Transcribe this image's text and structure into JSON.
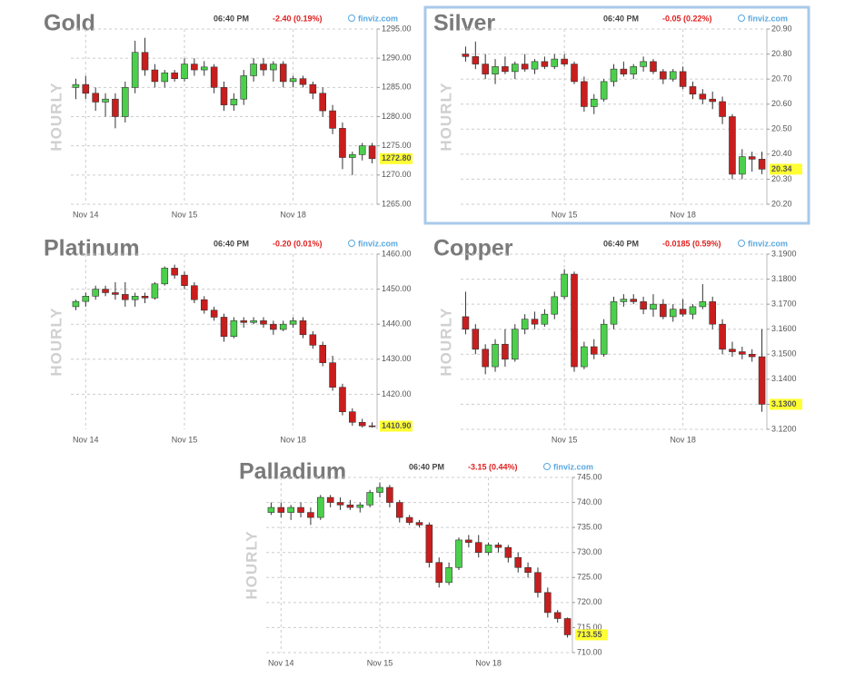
{
  "chart_data": [
    {
      "type": "candlestick",
      "title": "Gold",
      "time": "06:40 PM",
      "change": "-2.40 (0.19%)",
      "change_color": "#e02020",
      "source": "finviz.com",
      "y_label": "HOURLY",
      "categories": [
        null,
        "Nov 14",
        null,
        null,
        null,
        null,
        null,
        null,
        null,
        null,
        null,
        "Nov 15",
        null,
        null,
        null,
        null,
        null,
        null,
        null,
        null,
        null,
        null,
        "Nov 18",
        null,
        null,
        null,
        null,
        null,
        null,
        null,
        null
      ],
      "open": [
        1285,
        1285.5,
        1284,
        1282.5,
        1283,
        1280,
        1285,
        1291,
        1288,
        1286,
        1287.5,
        1286.5,
        1289,
        1288,
        1288.5,
        1285,
        1282,
        1283,
        1287,
        1289,
        1288,
        1289,
        1286,
        1286.5,
        1285.5,
        1284,
        1281,
        1278,
        1273,
        1273.5,
        1275
      ],
      "high": [
        1286.5,
        1287,
        1285,
        1284,
        1284,
        1286,
        1293,
        1293.5,
        1289,
        1288,
        1288,
        1290,
        1290,
        1289.5,
        1289,
        1286,
        1284,
        1288,
        1290,
        1290,
        1289.5,
        1289.5,
        1287,
        1287,
        1286,
        1285,
        1282,
        1279,
        1274,
        1275.5,
        1275.5
      ],
      "low": [
        1283,
        1283,
        1281,
        1280,
        1278,
        1279,
        1284,
        1287,
        1285,
        1285,
        1286,
        1286,
        1287,
        1287,
        1284,
        1281,
        1281,
        1282,
        1286,
        1287,
        1286,
        1285,
        1285,
        1285,
        1283,
        1280,
        1277,
        1271,
        1270,
        1272.5,
        1272
      ],
      "close": [
        1285.5,
        1284,
        1282.5,
        1283,
        1280,
        1285,
        1291,
        1288,
        1286,
        1287.5,
        1286.5,
        1289,
        1288,
        1288.5,
        1285,
        1282,
        1283,
        1287,
        1289,
        1288,
        1289,
        1286,
        1286.5,
        1285.5,
        1284,
        1281,
        1278,
        1273,
        1273.5,
        1275,
        1272.8
      ],
      "up_color": "#4cd04c",
      "down_color": "#c81e1e",
      "last_price": {
        "value": 1272.8,
        "label": "1272.80"
      },
      "ylim": [
        1265,
        1295
      ],
      "yticks": [
        {
          "value": 1265,
          "label": "1265.00"
        },
        {
          "value": 1270,
          "label": "1270.00"
        },
        {
          "value": 1275,
          "label": "1275.00"
        },
        {
          "value": 1280,
          "label": "1280.00"
        },
        {
          "value": 1285,
          "label": "1285.00"
        },
        {
          "value": 1290,
          "label": "1290.00"
        },
        {
          "value": 1295,
          "label": "1295.00"
        }
      ],
      "grid": true,
      "selected": false
    },
    {
      "type": "candlestick",
      "title": "Silver",
      "time": "06:40 PM",
      "change": "-0.05 (0.22%)",
      "change_color": "#e02020",
      "source": "finviz.com",
      "y_label": "HOURLY",
      "categories": [
        null,
        null,
        null,
        null,
        null,
        null,
        null,
        null,
        null,
        null,
        "Nov 15",
        null,
        null,
        null,
        null,
        null,
        null,
        null,
        null,
        null,
        null,
        null,
        "Nov 18",
        null,
        null,
        null,
        null,
        null,
        null,
        null,
        null
      ],
      "open": [
        20.8,
        20.79,
        20.76,
        20.72,
        20.75,
        20.73,
        20.76,
        20.74,
        20.77,
        20.75,
        20.78,
        20.76,
        20.69,
        20.59,
        20.62,
        20.69,
        20.74,
        20.72,
        20.75,
        20.77,
        20.73,
        20.7,
        20.73,
        20.67,
        20.64,
        20.62,
        20.61,
        20.55,
        20.32,
        20.39,
        20.38
      ],
      "high": [
        20.83,
        20.85,
        20.8,
        20.78,
        20.79,
        20.77,
        20.8,
        20.78,
        20.79,
        20.8,
        20.8,
        20.77,
        20.71,
        20.64,
        20.7,
        20.76,
        20.77,
        20.76,
        20.79,
        20.78,
        20.74,
        20.74,
        20.75,
        20.69,
        20.66,
        20.65,
        20.63,
        20.56,
        20.42,
        20.41,
        20.41
      ],
      "low": [
        20.77,
        20.74,
        20.7,
        20.68,
        20.72,
        20.7,
        20.73,
        20.72,
        20.74,
        20.74,
        20.75,
        20.68,
        20.57,
        20.56,
        20.61,
        20.67,
        20.71,
        20.7,
        20.73,
        20.72,
        20.68,
        20.69,
        20.66,
        20.62,
        20.6,
        20.58,
        20.52,
        20.3,
        20.3,
        20.33,
        20.32
      ],
      "close": [
        20.79,
        20.76,
        20.72,
        20.75,
        20.73,
        20.76,
        20.74,
        20.77,
        20.75,
        20.78,
        20.76,
        20.69,
        20.59,
        20.62,
        20.69,
        20.74,
        20.72,
        20.75,
        20.77,
        20.73,
        20.7,
        20.73,
        20.67,
        20.64,
        20.62,
        20.61,
        20.55,
        20.32,
        20.39,
        20.38,
        20.34
      ],
      "up_color": "#4cd04c",
      "down_color": "#c81e1e",
      "last_price": {
        "value": 20.34,
        "label": "20.34"
      },
      "ylim": [
        20.2,
        20.9
      ],
      "yticks": [
        {
          "value": 20.2,
          "label": "20.20"
        },
        {
          "value": 20.3,
          "label": "20.30"
        },
        {
          "value": 20.4,
          "label": "20.40"
        },
        {
          "value": 20.5,
          "label": "20.50"
        },
        {
          "value": 20.6,
          "label": "20.60"
        },
        {
          "value": 20.7,
          "label": "20.70"
        },
        {
          "value": 20.8,
          "label": "20.80"
        },
        {
          "value": 20.9,
          "label": "20.90"
        }
      ],
      "grid": true,
      "selected": true
    },
    {
      "type": "candlestick",
      "title": "Platinum",
      "time": "06:40 PM",
      "change": "-0.20 (0.01%)",
      "change_color": "#e02020",
      "source": "finviz.com",
      "y_label": "HOURLY",
      "categories": [
        null,
        "Nov 14",
        null,
        null,
        null,
        null,
        null,
        null,
        null,
        null,
        null,
        "Nov 15",
        null,
        null,
        null,
        null,
        null,
        null,
        null,
        null,
        null,
        null,
        "Nov 18",
        null,
        null,
        null,
        null,
        null,
        null,
        null,
        null
      ],
      "open": [
        1445,
        1446.5,
        1448,
        1450,
        1449,
        1448.5,
        1447,
        1448,
        1447.5,
        1451.5,
        1456,
        1454,
        1451,
        1447,
        1444,
        1442,
        1436.5,
        1441,
        1440.5,
        1441,
        1440,
        1438.5,
        1440,
        1441,
        1437,
        1434,
        1429,
        1422,
        1415,
        1412,
        1411
      ],
      "high": [
        1447,
        1449,
        1451,
        1451,
        1452,
        1452,
        1449,
        1449,
        1452,
        1456.5,
        1457,
        1455,
        1452,
        1448,
        1445,
        1443,
        1442,
        1442,
        1442,
        1442,
        1441,
        1441,
        1442,
        1442,
        1438,
        1435,
        1431,
        1423,
        1416,
        1413,
        1412
      ],
      "low": [
        1444,
        1445,
        1447,
        1448,
        1447,
        1445,
        1445,
        1446,
        1447,
        1451,
        1453,
        1450,
        1446,
        1443,
        1441,
        1435,
        1436,
        1439,
        1440,
        1439,
        1437,
        1438,
        1439,
        1436,
        1433,
        1428,
        1421,
        1414,
        1411,
        1410.5,
        1410.5
      ],
      "close": [
        1446.5,
        1448,
        1450,
        1449,
        1448.5,
        1447,
        1448,
        1447.5,
        1451.5,
        1456,
        1454,
        1451,
        1447,
        1444,
        1442,
        1436.5,
        1441,
        1440.5,
        1441,
        1440,
        1438.5,
        1440,
        1441,
        1437,
        1434,
        1429,
        1422,
        1415,
        1412,
        1411,
        1410.9
      ],
      "up_color": "#4cd04c",
      "down_color": "#c81e1e",
      "last_price": {
        "value": 1410.9,
        "label": "1410.90"
      },
      "ylim": [
        1410,
        1460
      ],
      "yticks": [
        {
          "value": 1420,
          "label": "1420.00"
        },
        {
          "value": 1430,
          "label": "1430.00"
        },
        {
          "value": 1440,
          "label": "1440.00"
        },
        {
          "value": 1450,
          "label": "1450.00"
        },
        {
          "value": 1460,
          "label": "1460.00"
        }
      ],
      "grid": true,
      "selected": false
    },
    {
      "type": "candlestick",
      "title": "Copper",
      "time": "06:40 PM",
      "change": "-0.0185 (0.59%)",
      "change_color": "#e02020",
      "source": "finviz.com",
      "y_label": "HOURLY",
      "categories": [
        null,
        null,
        null,
        null,
        null,
        null,
        null,
        null,
        null,
        null,
        "Nov 15",
        null,
        null,
        null,
        null,
        null,
        null,
        null,
        null,
        null,
        null,
        null,
        "Nov 18",
        null,
        null,
        null,
        null,
        null,
        null,
        null,
        null
      ],
      "open": [
        3.165,
        3.16,
        3.152,
        3.145,
        3.154,
        3.148,
        3.16,
        3.164,
        3.162,
        3.166,
        3.173,
        3.182,
        3.145,
        3.153,
        3.15,
        3.162,
        3.171,
        3.172,
        3.171,
        3.168,
        3.17,
        3.165,
        3.168,
        3.166,
        3.169,
        3.171,
        3.162,
        3.152,
        3.151,
        3.15,
        3.149
      ],
      "high": [
        3.175,
        3.162,
        3.154,
        3.156,
        3.16,
        3.162,
        3.166,
        3.167,
        3.168,
        3.175,
        3.184,
        3.183,
        3.155,
        3.156,
        3.164,
        3.173,
        3.174,
        3.174,
        3.173,
        3.174,
        3.172,
        3.17,
        3.172,
        3.17,
        3.178,
        3.173,
        3.164,
        3.155,
        3.153,
        3.152,
        3.16
      ],
      "low": [
        3.158,
        3.15,
        3.142,
        3.143,
        3.145,
        3.147,
        3.158,
        3.16,
        3.161,
        3.164,
        3.172,
        3.143,
        3.144,
        3.148,
        3.149,
        3.16,
        3.169,
        3.17,
        3.166,
        3.165,
        3.164,
        3.163,
        3.165,
        3.164,
        3.168,
        3.16,
        3.15,
        3.149,
        3.148,
        3.147,
        3.127
      ],
      "close": [
        3.16,
        3.152,
        3.145,
        3.154,
        3.148,
        3.16,
        3.164,
        3.162,
        3.166,
        3.173,
        3.182,
        3.145,
        3.153,
        3.15,
        3.162,
        3.171,
        3.172,
        3.171,
        3.168,
        3.17,
        3.165,
        3.168,
        3.166,
        3.169,
        3.171,
        3.162,
        3.152,
        3.151,
        3.15,
        3.149,
        3.13
      ],
      "up_color": "#4cd04c",
      "down_color": "#c81e1e",
      "last_price": {
        "value": 3.13,
        "label": "3.1300"
      },
      "ylim": [
        3.12,
        3.19
      ],
      "yticks": [
        {
          "value": 3.12,
          "label": "3.1200"
        },
        {
          "value": 3.13,
          "label": "3.1300"
        },
        {
          "value": 3.14,
          "label": "3.1400"
        },
        {
          "value": 3.15,
          "label": "3.1500"
        },
        {
          "value": 3.16,
          "label": "3.1600"
        },
        {
          "value": 3.17,
          "label": "3.1700"
        },
        {
          "value": 3.18,
          "label": "3.1800"
        },
        {
          "value": 3.19,
          "label": "3.1900"
        }
      ],
      "grid": true,
      "selected": false
    },
    {
      "type": "candlestick",
      "title": "Palladium",
      "time": "06:40 PM",
      "change": "-3.15 (0.44%)",
      "change_color": "#e02020",
      "source": "finviz.com",
      "y_label": "HOURLY",
      "categories": [
        null,
        "Nov 14",
        null,
        null,
        null,
        null,
        null,
        null,
        null,
        null,
        null,
        "Nov 15",
        null,
        null,
        null,
        null,
        null,
        null,
        null,
        null,
        null,
        null,
        "Nov 18",
        null,
        null,
        null,
        null,
        null,
        null,
        null,
        null
      ],
      "open": [
        738,
        739,
        738,
        739,
        738,
        737,
        741,
        740,
        739.5,
        739,
        739.5,
        742,
        743,
        740,
        737,
        736,
        735.5,
        728,
        724,
        727,
        732.5,
        732,
        730,
        731.5,
        731,
        729,
        727,
        726,
        722,
        718,
        716.8
      ],
      "high": [
        740,
        740,
        739.5,
        740,
        739,
        741.5,
        741.5,
        741,
        740.5,
        740,
        742.5,
        744,
        743.5,
        740.5,
        737.5,
        736.5,
        736,
        729,
        728,
        733,
        733.5,
        733.5,
        732,
        732,
        731.5,
        730,
        728,
        727,
        723,
        718.5,
        717
      ],
      "low": [
        737.5,
        737,
        736.5,
        737,
        735.5,
        736.5,
        739,
        738.5,
        738.5,
        738,
        739,
        741,
        739,
        736,
        735.5,
        735,
        727,
        723,
        723.5,
        726.5,
        731,
        729,
        729.5,
        730,
        728,
        726,
        725,
        721,
        717,
        716,
        713
      ],
      "close": [
        739,
        738,
        739,
        738,
        737,
        741,
        740,
        739.5,
        739,
        739.5,
        742,
        743,
        740,
        737,
        736,
        735.5,
        728,
        724,
        727,
        732.5,
        732,
        730,
        731.5,
        731,
        729,
        727,
        726,
        722,
        718,
        716.8,
        713.55
      ],
      "up_color": "#4cd04c",
      "down_color": "#c81e1e",
      "last_price": {
        "value": 713.55,
        "label": "713.55"
      },
      "ylim": [
        710,
        745
      ],
      "yticks": [
        {
          "value": 710,
          "label": "710.00"
        },
        {
          "value": 715,
          "label": "715.00"
        },
        {
          "value": 720,
          "label": "720.00"
        },
        {
          "value": 725,
          "label": "725.00"
        },
        {
          "value": 730,
          "label": "730.00"
        },
        {
          "value": 735,
          "label": "735.00"
        },
        {
          "value": 740,
          "label": "740.00"
        },
        {
          "value": 745,
          "label": "745.00"
        }
      ],
      "grid": true,
      "selected": false
    }
  ]
}
